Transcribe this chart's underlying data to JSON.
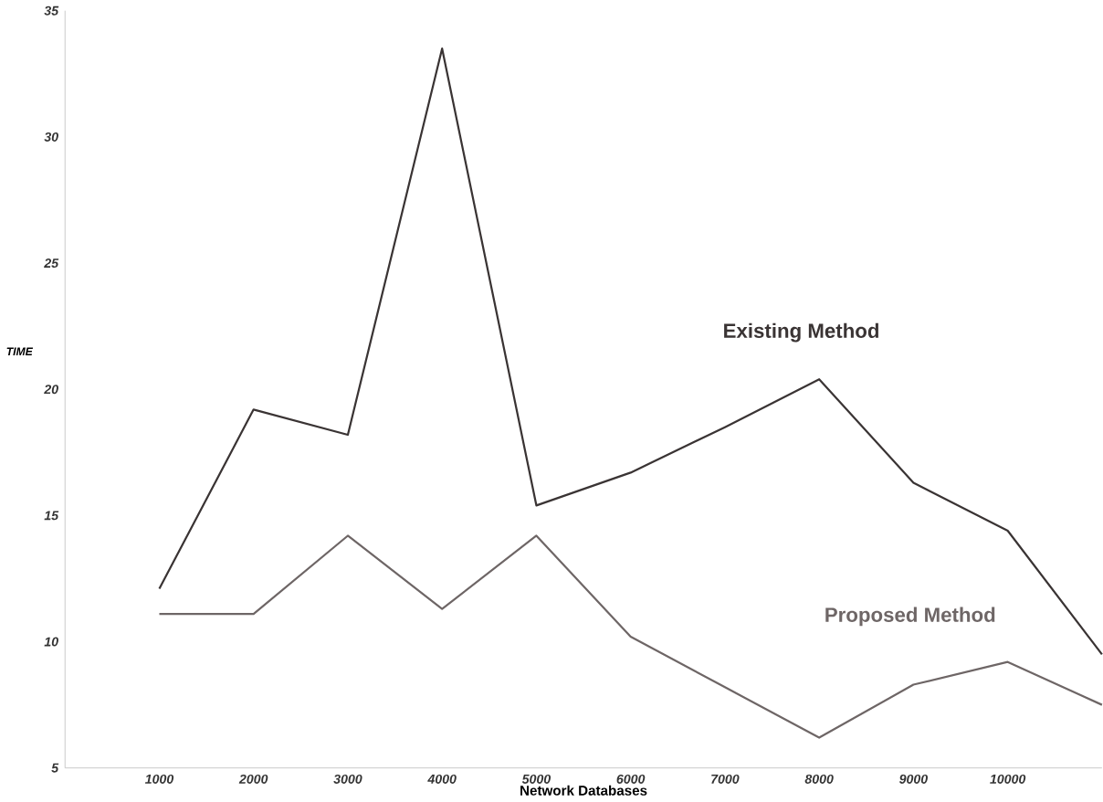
{
  "chart_data": {
    "type": "line",
    "xlabel": "Network Databases",
    "ylabel": "TIME",
    "x": [
      1000,
      2000,
      3000,
      4000,
      5000,
      6000,
      7000,
      8000,
      9000,
      10000,
      11000
    ],
    "series": [
      {
        "name": "Existing Method",
        "color": "#3a3434",
        "values": [
          12.1,
          19.2,
          18.2,
          33.5,
          15.4,
          16.7,
          18.5,
          20.4,
          16.3,
          14.4,
          9.5
        ]
      },
      {
        "name": "Proposed Method",
        "color": "#6e6666",
        "values": [
          11.1,
          11.1,
          14.2,
          11.3,
          14.2,
          10.2,
          8.2,
          6.2,
          8.3,
          9.2,
          7.5
        ]
      }
    ],
    "xlim": [
      0,
      11000
    ],
    "ylim": [
      5,
      35
    ],
    "xticks": [
      1000,
      2000,
      3000,
      4000,
      5000,
      6000,
      7000,
      8000,
      9000,
      10000
    ],
    "yticks": [
      5,
      10,
      15,
      20,
      25,
      30,
      35
    ],
    "grid": false,
    "legend": false,
    "marker": "none",
    "line_style": "solid"
  }
}
